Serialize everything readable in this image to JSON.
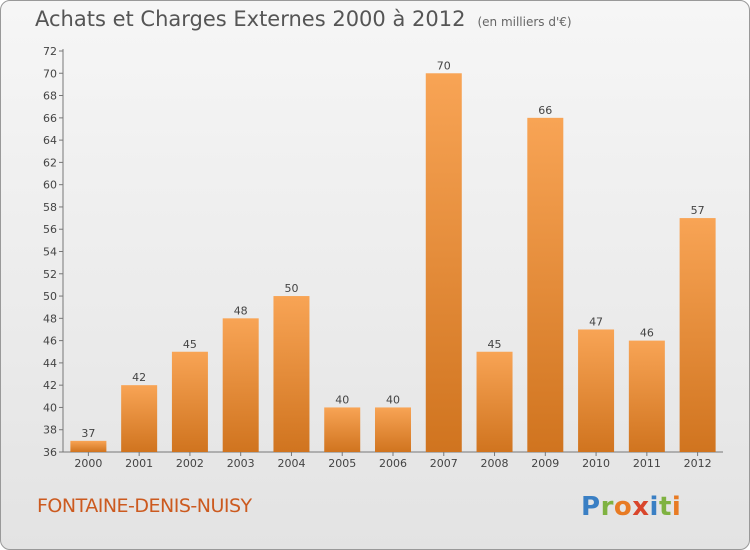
{
  "header": {
    "title": "Achats et Charges Externes 2000 à 2012",
    "unit": "(en milliers d'€)"
  },
  "footer": {
    "commune": "FONTAINE-DENIS-NUISY"
  },
  "brand": {
    "logo_text": "Proxiti",
    "logo_letters": [
      {
        "ch": "P",
        "color": "#3a7fc4"
      },
      {
        "ch": "r",
        "color": "#7fb241"
      },
      {
        "ch": "o",
        "color": "#e87b24"
      },
      {
        "ch": "x",
        "color": "#d9462c"
      },
      {
        "ch": "i",
        "color": "#3a7fc4"
      },
      {
        "ch": "t",
        "color": "#7fb241"
      },
      {
        "ch": "i",
        "color": "#e87b24"
      }
    ]
  },
  "chart_data": {
    "type": "bar",
    "title": "Achats et Charges Externes 2000 à 2012",
    "subtitle": "(en milliers d'€)",
    "categories": [
      "2000",
      "2001",
      "2002",
      "2003",
      "2004",
      "2005",
      "2006",
      "2007",
      "2008",
      "2009",
      "2010",
      "2011",
      "2012"
    ],
    "values": [
      37,
      42,
      45,
      48,
      50,
      40,
      40,
      70,
      45,
      66,
      47,
      46,
      57
    ],
    "ylim": [
      36,
      72
    ],
    "yticks": [
      36,
      38,
      40,
      42,
      44,
      46,
      48,
      50,
      52,
      54,
      56,
      58,
      60,
      62,
      64,
      66,
      68,
      70,
      72
    ],
    "grid": false,
    "bar_color_top": "#f8a455",
    "bar_color_bottom": "#d0741f"
  }
}
